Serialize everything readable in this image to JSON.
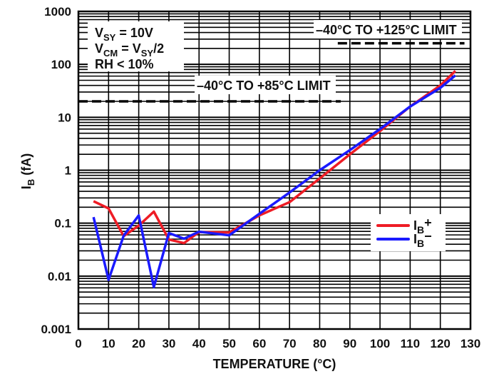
{
  "chart_data": {
    "type": "line",
    "title": "",
    "xlabel": "TEMPERATURE (°C)",
    "ylabel": "I",
    "ylabel_sub": "B",
    "ylabel_unit": " (fA)",
    "xlim": [
      0,
      130
    ],
    "ylim": [
      0.001,
      1000
    ],
    "yscale": "log",
    "grid": true,
    "x_ticks": [
      0,
      10,
      20,
      30,
      40,
      50,
      60,
      70,
      80,
      90,
      100,
      110,
      120,
      130
    ],
    "y_ticks": [
      0.001,
      0.01,
      0.1,
      1,
      10,
      100,
      1000
    ],
    "y_tick_labels": [
      "0.001",
      "0.01",
      "0.1",
      "1",
      "10",
      "100",
      "1000"
    ],
    "series": [
      {
        "name": "IB+",
        "label_main": "I",
        "label_sub": "B",
        "label_suffix": "+",
        "color": "#ee1c25",
        "x": [
          5,
          10,
          15,
          20,
          25,
          30,
          35,
          40,
          50,
          60,
          70,
          80,
          90,
          100,
          110,
          120,
          125
        ],
        "values": [
          0.26,
          0.19,
          0.057,
          0.09,
          0.165,
          0.049,
          0.042,
          0.068,
          0.067,
          0.14,
          0.25,
          0.7,
          2.0,
          5.5,
          16,
          40,
          75
        ]
      },
      {
        "name": "IB−",
        "label_main": "I",
        "label_sub": "B",
        "label_suffix": "−",
        "color": "#1a1aff",
        "x": [
          5,
          10,
          15,
          20,
          25,
          30,
          35,
          40,
          50,
          60,
          70,
          80,
          90,
          100,
          110,
          120,
          125
        ],
        "values": [
          0.13,
          0.0085,
          0.058,
          0.14,
          0.0062,
          0.065,
          0.051,
          0.069,
          0.059,
          0.15,
          0.38,
          1.0,
          2.4,
          6.0,
          16,
          36,
          62
        ]
      }
    ],
    "limits": [
      {
        "name": "limit-85",
        "label": "–40°C TO +85°C LIMIT",
        "value": 20,
        "x_range": [
          0,
          87
        ]
      },
      {
        "name": "limit-125",
        "label": "–40°C TO +125°C LIMIT",
        "value": 250,
        "x_range": [
          86,
          128
        ]
      }
    ],
    "conditions": {
      "line1": {
        "main": "V",
        "sub": "SY",
        "rest": " = 10V"
      },
      "line2": {
        "main": "V",
        "sub": "CM",
        "mid": " = V",
        "sub2": "SY",
        "rest": "/2"
      },
      "line3": {
        "text": "RH < 10%"
      }
    },
    "legend_position": "lower-right"
  }
}
